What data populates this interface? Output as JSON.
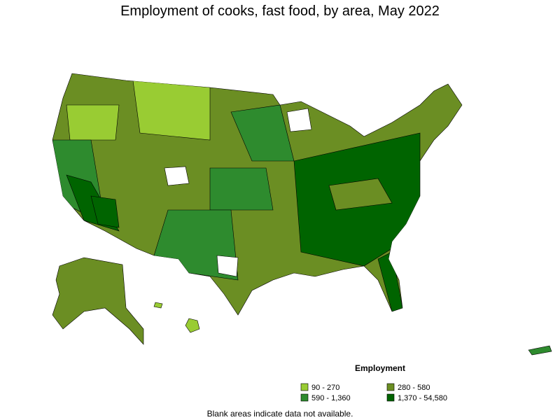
{
  "title": "Employment of cooks, fast food, by area, May 2022",
  "legend": {
    "title": "Employment",
    "items": [
      {
        "label": "90 - 270",
        "color": "#99cc33"
      },
      {
        "label": "280 - 580",
        "color": "#6b8e23"
      },
      {
        "label": "590 - 1,360",
        "color": "#2e8b2e"
      },
      {
        "label": "1,370 - 54,580",
        "color": "#006400"
      }
    ]
  },
  "note": "Blank areas indicate data not available."
}
